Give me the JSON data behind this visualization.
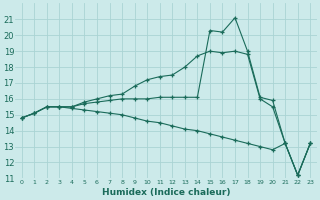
{
  "xlabel": "Humidex (Indice chaleur)",
  "background_color": "#cceaea",
  "grid_color": "#aad4d4",
  "line_color": "#1a6b5a",
  "ylim": [
    11,
    22
  ],
  "xlim": [
    -0.5,
    23.5
  ],
  "yticks": [
    11,
    12,
    13,
    14,
    15,
    16,
    17,
    18,
    19,
    20,
    21
  ],
  "xticks": [
    0,
    1,
    2,
    3,
    4,
    5,
    6,
    7,
    8,
    9,
    10,
    11,
    12,
    13,
    14,
    15,
    16,
    17,
    18,
    19,
    20,
    21,
    22,
    23
  ],
  "line1_x": [
    0,
    1,
    2,
    3,
    4,
    5,
    6,
    7,
    8,
    9,
    10,
    11,
    12,
    13,
    14,
    15,
    16,
    17,
    18,
    19,
    20,
    21,
    22,
    23
  ],
  "line1_y": [
    14.8,
    15.1,
    15.5,
    15.5,
    15.5,
    15.8,
    16.0,
    16.2,
    16.3,
    16.8,
    17.2,
    17.4,
    17.5,
    18.0,
    18.7,
    19.0,
    18.9,
    19.0,
    18.8,
    16.0,
    15.5,
    13.2,
    11.2,
    13.2
  ],
  "line2_x": [
    0,
    1,
    2,
    3,
    4,
    5,
    6,
    7,
    8,
    9,
    10,
    11,
    12,
    13,
    14,
    15,
    16,
    17,
    18,
    19,
    20,
    21,
    22,
    23
  ],
  "line2_y": [
    14.8,
    15.1,
    15.5,
    15.5,
    15.5,
    15.7,
    15.8,
    15.9,
    16.0,
    16.0,
    16.0,
    16.1,
    16.1,
    16.1,
    16.1,
    20.3,
    20.2,
    21.1,
    19.0,
    16.1,
    15.9,
    13.2,
    11.2,
    13.2
  ],
  "line3_x": [
    0,
    1,
    2,
    3,
    4,
    5,
    6,
    7,
    8,
    9,
    10,
    11,
    12,
    13,
    14,
    15,
    16,
    17,
    18,
    19,
    20,
    21,
    22,
    23
  ],
  "line3_y": [
    14.8,
    15.1,
    15.5,
    15.5,
    15.4,
    15.3,
    15.2,
    15.1,
    15.0,
    14.8,
    14.6,
    14.5,
    14.3,
    14.1,
    14.0,
    13.8,
    13.6,
    13.4,
    13.2,
    13.0,
    12.8,
    13.2,
    11.2,
    13.2
  ]
}
